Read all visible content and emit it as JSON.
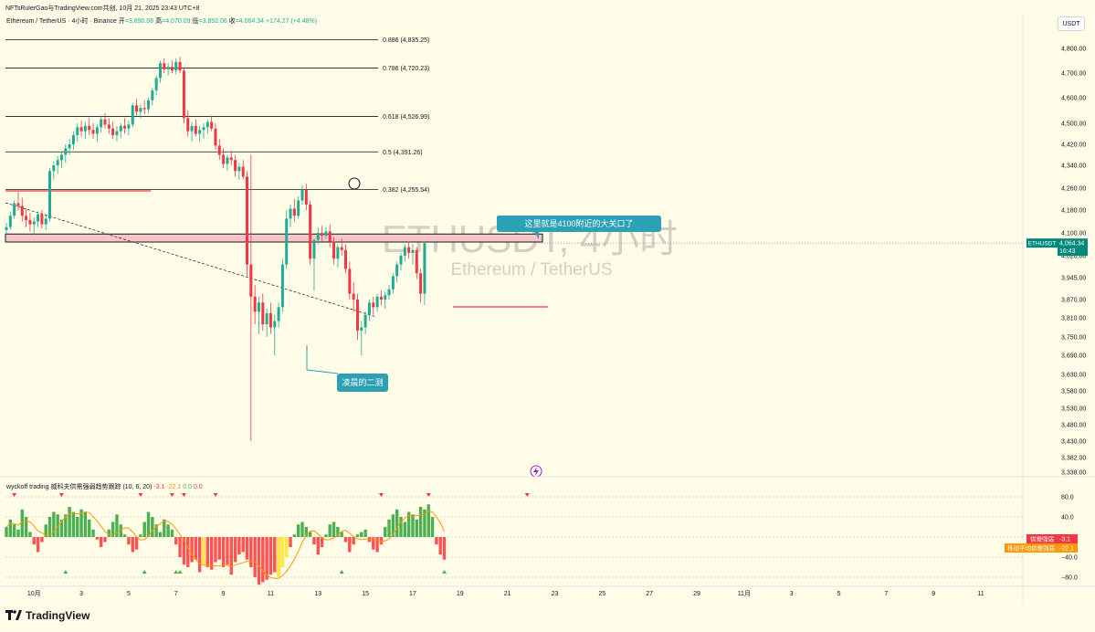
{
  "header": {
    "author": "NFTsRulerGao与TradingView.com共创",
    "datetime": "10月 21, 2025 23:43 UTC+8"
  },
  "legend": {
    "symbol": "Ethereum / TetherUS · 4小时 · Binance",
    "open_label": "开",
    "open": "=3,890.06",
    "high_label": "高",
    "high": "=4,070.09",
    "low_label": "低",
    "low": "=3,852.06",
    "close_label": "收",
    "close": "=4,064.34",
    "change": "+174.27 (+4.48%)"
  },
  "indicator_legend": {
    "name": "wyckoff trading 威科夫供需强弱趋势跟踪 (10, 6, 20)",
    "v1": "-3.1",
    "v2": "-22.1",
    "v3": "0.0",
    "v4": "0.0"
  },
  "currency_badge": "USDT",
  "watermark": {
    "main": "ETHUSDT, 4小时",
    "sub": "Ethereum / TetherUS"
  },
  "price_tag": {
    "label": "ETHUSDT",
    "price": "4,064.34",
    "timer": "16:43",
    "color": "#00897b"
  },
  "indicator_tags": [
    {
      "label": "供需强弱",
      "value": "-3.1",
      "color": "#f23645"
    },
    {
      "label": "移动平均供需强弱",
      "value": "-22.1",
      "color": "#ff9800"
    }
  ],
  "annotations": [
    {
      "text": "这里就是4100附近的大关口了"
    },
    {
      "text": "凌晨的二测"
    }
  ],
  "footer": {
    "brand": "TradingView"
  },
  "chart_data": {
    "type": "candlestick",
    "y_ticks": [
      4800,
      4700,
      4600,
      4500,
      4420,
      4340,
      4260,
      4180,
      4100,
      4020,
      3945,
      3870,
      3810,
      3750,
      3690,
      3630,
      3580,
      3530,
      3480,
      3430,
      3382,
      3338
    ],
    "y_tick_labels": [
      "4,800.00",
      "4,700.00",
      "4,600.00",
      "4,500.00",
      "4,420.00",
      "4,340.00",
      "4,260.00",
      "4,180.00",
      "4,100.00",
      "4,020.00",
      "3,945.00",
      "3,870.00",
      "3,810.00",
      "3,750.00",
      "3,690.00",
      "3,630.00",
      "3,580.00",
      "3,530.00",
      "3,480.00",
      "3,430.00",
      "3,382.00",
      "3,338.00"
    ],
    "x_ticks": [
      {
        "label": "10月",
        "bar": 7
      },
      {
        "label": "3",
        "bar": 19
      },
      {
        "label": "5",
        "bar": 31
      },
      {
        "label": "7",
        "bar": 43
      },
      {
        "label": "9",
        "bar": 55
      },
      {
        "label": "11",
        "bar": 67
      },
      {
        "label": "13",
        "bar": 79
      },
      {
        "label": "15",
        "bar": 91
      },
      {
        "label": "17",
        "bar": 103
      },
      {
        "label": "19",
        "bar": 115
      },
      {
        "label": "21",
        "bar": 127
      },
      {
        "label": "23",
        "bar": 139
      },
      {
        "label": "25",
        "bar": 151
      },
      {
        "label": "27",
        "bar": 163
      },
      {
        "label": "29",
        "bar": 175
      },
      {
        "label": "11月",
        "bar": 187
      },
      {
        "label": "3",
        "bar": 199
      },
      {
        "label": "5",
        "bar": 211
      },
      {
        "label": "7",
        "bar": 223
      },
      {
        "label": "9",
        "bar": 235
      },
      {
        "label": "11",
        "bar": 247
      }
    ],
    "fib_levels": [
      {
        "ratio": "0.886",
        "price": 4835.25,
        "label": "0.886 (4,835.25)"
      },
      {
        "ratio": "0.786",
        "price": 4720.23,
        "label": "0.786 (4,720.23)"
      },
      {
        "ratio": "0.618",
        "price": 4526.99,
        "label": "0.618 (4,526.99)"
      },
      {
        "ratio": "0.5",
        "price": 4391.26,
        "label": "0.5 (4,391.26)"
      },
      {
        "ratio": "0.382",
        "price": 4255.54,
        "label": "0.382 (4,255.54)"
      }
    ],
    "resistance_zone": [
      4068,
      4096
    ],
    "upper_zone_price": 4250,
    "support_line_price": 3846,
    "last_price": 4064.34,
    "colors": {
      "up": "#22ab94",
      "down": "#f23645",
      "hist_up": "#4caf50",
      "hist_down": "#ff5252",
      "ma": "#ff9800"
    },
    "ohlc": [
      [
        4110,
        4135,
        4095,
        4120
      ],
      [
        4120,
        4175,
        4110,
        4160
      ],
      [
        4160,
        4215,
        4150,
        4205
      ],
      [
        4205,
        4245,
        4180,
        4195
      ],
      [
        4195,
        4225,
        4140,
        4160
      ],
      [
        4160,
        4185,
        4120,
        4145
      ],
      [
        4145,
        4170,
        4105,
        4130
      ],
      [
        4130,
        4155,
        4095,
        4140
      ],
      [
        4140,
        4175,
        4120,
        4165
      ],
      [
        4165,
        4180,
        4115,
        4130
      ],
      [
        4130,
        4165,
        4110,
        4150
      ],
      [
        4150,
        4330,
        4140,
        4320
      ],
      [
        4320,
        4355,
        4290,
        4340
      ],
      [
        4340,
        4375,
        4310,
        4360
      ],
      [
        4360,
        4395,
        4330,
        4380
      ],
      [
        4380,
        4420,
        4350,
        4405
      ],
      [
        4405,
        4440,
        4380,
        4420
      ],
      [
        4420,
        4470,
        4400,
        4455
      ],
      [
        4455,
        4500,
        4430,
        4485
      ],
      [
        4485,
        4510,
        4450,
        4470
      ],
      [
        4470,
        4505,
        4440,
        4490
      ],
      [
        4490,
        4520,
        4455,
        4475
      ],
      [
        4475,
        4500,
        4440,
        4460
      ],
      [
        4460,
        4495,
        4430,
        4485
      ],
      [
        4485,
        4530,
        4465,
        4515
      ],
      [
        4515,
        4540,
        4480,
        4495
      ],
      [
        4495,
        4520,
        4460,
        4480
      ],
      [
        4480,
        4505,
        4440,
        4455
      ],
      [
        4455,
        4490,
        4430,
        4470
      ],
      [
        4470,
        4500,
        4445,
        4490
      ],
      [
        4490,
        4520,
        4460,
        4480
      ],
      [
        4480,
        4510,
        4455,
        4495
      ],
      [
        4495,
        4580,
        4485,
        4570
      ],
      [
        4570,
        4595,
        4530,
        4545
      ],
      [
        4545,
        4575,
        4520,
        4560
      ],
      [
        4560,
        4590,
        4535,
        4555
      ],
      [
        4555,
        4600,
        4540,
        4590
      ],
      [
        4590,
        4640,
        4570,
        4630
      ],
      [
        4630,
        4690,
        4610,
        4680
      ],
      [
        4680,
        4750,
        4660,
        4740
      ],
      [
        4740,
        4760,
        4700,
        4715
      ],
      [
        4715,
        4740,
        4690,
        4725
      ],
      [
        4725,
        4750,
        4700,
        4710
      ],
      [
        4710,
        4760,
        4695,
        4745
      ],
      [
        4745,
        4765,
        4700,
        4710
      ],
      [
        4710,
        4720,
        4500,
        4520
      ],
      [
        4520,
        4550,
        4450,
        4470
      ],
      [
        4470,
        4505,
        4430,
        4490
      ],
      [
        4490,
        4515,
        4450,
        4460
      ],
      [
        4460,
        4490,
        4430,
        4475
      ],
      [
        4475,
        4500,
        4440,
        4485
      ],
      [
        4485,
        4515,
        4460,
        4505
      ],
      [
        4505,
        4530,
        4470,
        4480
      ],
      [
        4480,
        4500,
        4400,
        4415
      ],
      [
        4415,
        4440,
        4360,
        4380
      ],
      [
        4380,
        4405,
        4330,
        4345
      ],
      [
        4345,
        4380,
        4320,
        4370
      ],
      [
        4370,
        4395,
        4340,
        4360
      ],
      [
        4360,
        4380,
        4300,
        4320
      ],
      [
        4320,
        4350,
        4290,
        4335
      ],
      [
        4335,
        4360,
        4290,
        4300
      ],
      [
        4300,
        4320,
        3950,
        3990
      ],
      [
        3990,
        4380,
        3430,
        3880
      ],
      [
        3880,
        3920,
        3790,
        3830
      ],
      [
        3830,
        3880,
        3760,
        3860
      ],
      [
        3860,
        3890,
        3770,
        3790
      ],
      [
        3790,
        3840,
        3750,
        3825
      ],
      [
        3825,
        3860,
        3760,
        3780
      ],
      [
        3780,
        3820,
        3690,
        3800
      ],
      [
        3800,
        3860,
        3780,
        3845
      ],
      [
        3845,
        4010,
        3830,
        3990
      ],
      [
        3990,
        4180,
        3975,
        4150
      ],
      [
        4150,
        4200,
        4120,
        4185
      ],
      [
        4185,
        4220,
        4140,
        4160
      ],
      [
        4160,
        4230,
        4150,
        4215
      ],
      [
        4215,
        4270,
        4200,
        4255
      ],
      [
        4255,
        4275,
        4180,
        4200
      ],
      [
        4200,
        4215,
        3990,
        4010
      ],
      [
        4010,
        4080,
        3900,
        4075
      ],
      [
        4075,
        4120,
        4060,
        4100
      ],
      [
        4100,
        4125,
        4070,
        4090
      ],
      [
        4090,
        4120,
        4080,
        4105
      ],
      [
        4105,
        4130,
        4050,
        4070
      ],
      [
        4070,
        4085,
        3990,
        4010
      ],
      [
        4010,
        4060,
        3980,
        4050
      ],
      [
        4050,
        4080,
        4020,
        4040
      ],
      [
        4040,
        4060,
        3960,
        3975
      ],
      [
        3975,
        4000,
        3870,
        3890
      ],
      [
        3890,
        3930,
        3830,
        3870
      ],
      [
        3870,
        3890,
        3740,
        3770
      ],
      [
        3770,
        3800,
        3690,
        3780
      ],
      [
        3780,
        3830,
        3760,
        3820
      ],
      [
        3820,
        3870,
        3800,
        3860
      ],
      [
        3860,
        3880,
        3820,
        3845
      ],
      [
        3845,
        3890,
        3830,
        3880
      ],
      [
        3880,
        3900,
        3850,
        3870
      ],
      [
        3870,
        3895,
        3840,
        3885
      ],
      [
        3885,
        3920,
        3870,
        3905
      ],
      [
        3905,
        3960,
        3890,
        3950
      ],
      [
        3950,
        4000,
        3930,
        3990
      ],
      [
        3990,
        4030,
        3970,
        4020
      ],
      [
        4020,
        4060,
        4000,
        4050
      ],
      [
        4050,
        4070,
        4010,
        4030
      ],
      [
        4030,
        4060,
        3990,
        4040
      ],
      [
        4040,
        4050,
        3940,
        3960
      ],
      [
        3960,
        3975,
        3860,
        3890
      ],
      [
        3890,
        4070,
        3852,
        4064
      ]
    ],
    "indicator": {
      "y_ticks": [
        80,
        40,
        0,
        -40,
        -80
      ],
      "y_tick_labels": [
        "80.0",
        "40.0",
        "0.0",
        "−40.0",
        "−80.0"
      ],
      "hist": [
        20,
        35,
        25,
        15,
        55,
        40,
        10,
        -15,
        -30,
        -10,
        25,
        40,
        50,
        45,
        35,
        45,
        60,
        50,
        40,
        55,
        50,
        35,
        15,
        -5,
        -20,
        -10,
        15,
        30,
        45,
        25,
        5,
        -15,
        -30,
        -25,
        5,
        30,
        50,
        40,
        25,
        10,
        35,
        25,
        15,
        -15,
        -40,
        -55,
        -60,
        -50,
        -45,
        -70,
        -55,
        -60,
        -65,
        -50,
        -45,
        -60,
        -55,
        -75,
        -50,
        -35,
        -30,
        -45,
        -60,
        -80,
        -95,
        -90,
        -85,
        -75,
        -70,
        -80,
        -60,
        -40,
        -20,
        5,
        25,
        30,
        20,
        10,
        -15,
        -35,
        -20,
        5,
        25,
        30,
        20,
        10,
        -10,
        -30,
        -15,
        5,
        10,
        15,
        -10,
        -25,
        -30,
        -15,
        20,
        35,
        45,
        55,
        40,
        30,
        50,
        45,
        35,
        60,
        55,
        65,
        40,
        -15,
        -35,
        -45
      ]
    }
  }
}
